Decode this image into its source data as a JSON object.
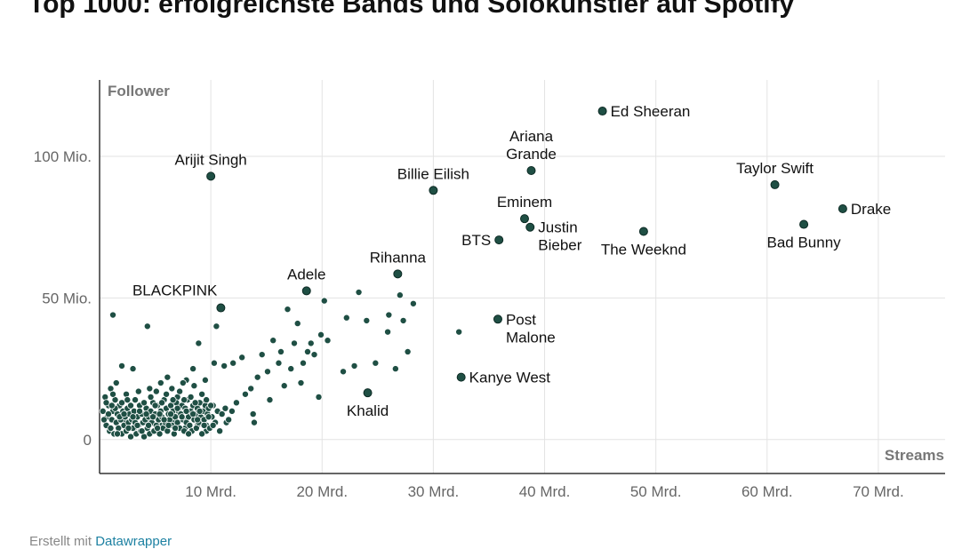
{
  "title": "Top 1000: erfolgreichste Bands und Solokünstler auf Spotify",
  "footer": {
    "prefix": "Erstellt mit ",
    "link": "Datawrapper"
  },
  "colors": {
    "dot": "#1f4f44",
    "dot_stroke": "#ffffff",
    "grid": "#e3e3e3",
    "axis": "#333333",
    "label": "#111111",
    "tick": "#666666"
  },
  "chart_data": {
    "type": "scatter",
    "xlabel": "Streams",
    "ylabel": "Follower",
    "xlim": [
      0,
      76
    ],
    "ylim": [
      -12,
      127
    ],
    "x_ticks": [
      {
        "value": 10,
        "label": "10 Mrd."
      },
      {
        "value": 20,
        "label": "20 Mrd."
      },
      {
        "value": 30,
        "label": "30 Mrd."
      },
      {
        "value": 40,
        "label": "40 Mrd."
      },
      {
        "value": 50,
        "label": "50 Mrd."
      },
      {
        "value": 60,
        "label": "60 Mrd."
      },
      {
        "value": 70,
        "label": "70 Mrd."
      }
    ],
    "y_ticks": [
      {
        "value": 0,
        "label": "0"
      },
      {
        "value": 50,
        "label": "50 Mio."
      },
      {
        "value": 100,
        "label": "100 Mio."
      }
    ],
    "grid": true,
    "labeled_points": [
      {
        "name": "Ed Sheeran",
        "x": 45.2,
        "y": 116,
        "anchor": "right"
      },
      {
        "name": "Ariana Grande",
        "x": 38.8,
        "y": 95,
        "anchor": "above"
      },
      {
        "name": "Arijit Singh",
        "x": 10.0,
        "y": 93,
        "anchor": "above"
      },
      {
        "name": "Billie Eilish",
        "x": 30.0,
        "y": 88,
        "anchor": "above"
      },
      {
        "name": "Taylor Swift",
        "x": 60.7,
        "y": 90,
        "anchor": "above"
      },
      {
        "name": "Drake",
        "x": 66.8,
        "y": 81.5,
        "anchor": "right"
      },
      {
        "name": "Eminem",
        "x": 38.2,
        "y": 78,
        "anchor": "above"
      },
      {
        "name": "Justin Bieber",
        "x": 38.7,
        "y": 75,
        "anchor": "right"
      },
      {
        "name": "Bad Bunny",
        "x": 63.3,
        "y": 76,
        "anchor": "below"
      },
      {
        "name": "The Weeknd",
        "x": 48.9,
        "y": 73.5,
        "anchor": "below"
      },
      {
        "name": "BTS",
        "x": 35.9,
        "y": 70.5,
        "anchor": "left"
      },
      {
        "name": "Rihanna",
        "x": 26.8,
        "y": 58.5,
        "anchor": "above"
      },
      {
        "name": "Adele",
        "x": 18.6,
        "y": 52.5,
        "anchor": "above"
      },
      {
        "name": "BLACKPINK",
        "x": 10.9,
        "y": 46.5,
        "anchor": "above-left"
      },
      {
        "name": "Post Malone",
        "x": 35.8,
        "y": 42.5,
        "anchor": "right"
      },
      {
        "name": "Kanye West",
        "x": 32.5,
        "y": 22,
        "anchor": "right"
      },
      {
        "name": "Khalid",
        "x": 24.1,
        "y": 16.5,
        "anchor": "below"
      }
    ],
    "points": [
      [
        1.2,
        44
      ],
      [
        2.0,
        26
      ],
      [
        3.0,
        25
      ],
      [
        4.3,
        40
      ],
      [
        5.1,
        17
      ],
      [
        6.1,
        22
      ],
      [
        7.0,
        15
      ],
      [
        7.8,
        21
      ],
      [
        8.4,
        25
      ],
      [
        8.9,
        34
      ],
      [
        9.5,
        13
      ],
      [
        10.3,
        27
      ],
      [
        10.5,
        40
      ],
      [
        11.2,
        26
      ],
      [
        12.0,
        27
      ],
      [
        12.3,
        13
      ],
      [
        12.8,
        29
      ],
      [
        13.1,
        16
      ],
      [
        13.6,
        18
      ],
      [
        13.8,
        9
      ],
      [
        13.9,
        6
      ],
      [
        14.2,
        22
      ],
      [
        14.6,
        30
      ],
      [
        15.1,
        24
      ],
      [
        15.3,
        14
      ],
      [
        15.6,
        35
      ],
      [
        16.1,
        27
      ],
      [
        16.3,
        31
      ],
      [
        16.6,
        19
      ],
      [
        16.9,
        46
      ],
      [
        17.2,
        25
      ],
      [
        17.5,
        34
      ],
      [
        17.8,
        41
      ],
      [
        18.1,
        20
      ],
      [
        18.3,
        27
      ],
      [
        18.7,
        31
      ],
      [
        19.0,
        34
      ],
      [
        19.3,
        30
      ],
      [
        19.7,
        15
      ],
      [
        19.9,
        37
      ],
      [
        20.2,
        49
      ],
      [
        20.5,
        35
      ],
      [
        21.9,
        24
      ],
      [
        22.2,
        43
      ],
      [
        22.9,
        26
      ],
      [
        23.3,
        52
      ],
      [
        24.0,
        42
      ],
      [
        24.8,
        27
      ],
      [
        25.9,
        38
      ],
      [
        26.0,
        44
      ],
      [
        26.6,
        25
      ],
      [
        27.0,
        51
      ],
      [
        27.3,
        42
      ],
      [
        27.7,
        31
      ],
      [
        28.2,
        48
      ],
      [
        32.3,
        38
      ],
      [
        2.2,
        6
      ],
      [
        3.1,
        4
      ],
      [
        4.4,
        7
      ],
      [
        5.6,
        5
      ],
      [
        6.6,
        6
      ],
      [
        7.7,
        4
      ],
      [
        8.8,
        5
      ],
      [
        9.6,
        3
      ],
      [
        11.4,
        6
      ],
      [
        0.3,
        10
      ],
      [
        0.5,
        15
      ],
      [
        0.6,
        5
      ],
      [
        0.7,
        8
      ],
      [
        0.8,
        12
      ],
      [
        0.9,
        3
      ],
      [
        1.0,
        18
      ],
      [
        1.1,
        7
      ],
      [
        1.2,
        10
      ],
      [
        1.3,
        2
      ],
      [
        1.4,
        14
      ],
      [
        1.5,
        6
      ],
      [
        1.6,
        9
      ],
      [
        1.7,
        4
      ],
      [
        1.8,
        12
      ],
      [
        1.9,
        7
      ],
      [
        2.0,
        2
      ],
      [
        2.1,
        10
      ],
      [
        2.2,
        5
      ],
      [
        2.3,
        8
      ],
      [
        2.4,
        3
      ],
      [
        2.5,
        11
      ],
      [
        2.6,
        6
      ],
      [
        2.7,
        9
      ],
      [
        2.8,
        1
      ],
      [
        2.9,
        7
      ],
      [
        3.0,
        4
      ],
      [
        3.1,
        10
      ],
      [
        3.2,
        6
      ],
      [
        3.3,
        2
      ],
      [
        3.4,
        8
      ],
      [
        3.5,
        5
      ],
      [
        3.6,
        12
      ],
      [
        3.7,
        3
      ],
      [
        3.8,
        9
      ],
      [
        3.9,
        6
      ],
      [
        4.0,
        1
      ],
      [
        4.1,
        7
      ],
      [
        4.2,
        11
      ],
      [
        4.3,
        4
      ],
      [
        4.4,
        8
      ],
      [
        4.5,
        2
      ],
      [
        4.6,
        10
      ],
      [
        4.7,
        6
      ],
      [
        4.8,
        13
      ],
      [
        4.9,
        3
      ],
      [
        5.0,
        9
      ],
      [
        5.1,
        5
      ],
      [
        5.2,
        12
      ],
      [
        5.3,
        7
      ],
      [
        5.4,
        2
      ],
      [
        5.5,
        10
      ],
      [
        5.6,
        8
      ],
      [
        5.7,
        4
      ],
      [
        5.8,
        14
      ],
      [
        5.9,
        6
      ],
      [
        6.0,
        11
      ],
      [
        6.1,
        3
      ],
      [
        6.2,
        9
      ],
      [
        6.3,
        7
      ],
      [
        6.4,
        12
      ],
      [
        6.5,
        5
      ],
      [
        6.6,
        10
      ],
      [
        6.7,
        2
      ],
      [
        6.8,
        8
      ],
      [
        6.9,
        13
      ],
      [
        7.0,
        6
      ],
      [
        7.1,
        10
      ],
      [
        7.2,
        4
      ],
      [
        7.3,
        9
      ],
      [
        7.4,
        12
      ],
      [
        7.5,
        7
      ],
      [
        7.6,
        3
      ],
      [
        7.7,
        11
      ],
      [
        7.8,
        6
      ],
      [
        7.9,
        14
      ],
      [
        8.0,
        8
      ],
      [
        8.1,
        5
      ],
      [
        8.2,
        10
      ],
      [
        8.3,
        3
      ],
      [
        8.4,
        12
      ],
      [
        8.5,
        7
      ],
      [
        8.6,
        9
      ],
      [
        8.7,
        4
      ],
      [
        8.8,
        11
      ],
      [
        8.9,
        6
      ],
      [
        9.0,
        13
      ],
      [
        9.1,
        8
      ],
      [
        9.2,
        2
      ],
      [
        9.3,
        10
      ],
      [
        9.4,
        7
      ],
      [
        9.5,
        12
      ],
      [
        9.6,
        5
      ],
      [
        9.7,
        9
      ],
      [
        9.8,
        11
      ],
      [
        9.9,
        4
      ],
      [
        10.1,
        8
      ],
      [
        10.2,
        12
      ],
      [
        10.4,
        6
      ],
      [
        10.6,
        10
      ],
      [
        10.8,
        3
      ],
      [
        11.0,
        9
      ],
      [
        11.3,
        11
      ],
      [
        11.6,
        7
      ],
      [
        11.9,
        10
      ],
      [
        0.4,
        7
      ],
      [
        0.6,
        13
      ],
      [
        0.8,
        9
      ],
      [
        1.0,
        4
      ],
      [
        1.2,
        16
      ],
      [
        1.4,
        11
      ],
      [
        1.6,
        2
      ],
      [
        1.8,
        8
      ],
      [
        2.0,
        13
      ],
      [
        2.2,
        9
      ],
      [
        2.4,
        16
      ],
      [
        2.6,
        4
      ],
      [
        2.8,
        12
      ],
      [
        3.0,
        8
      ],
      [
        3.2,
        14
      ],
      [
        3.4,
        5
      ],
      [
        3.6,
        10
      ],
      [
        3.8,
        3
      ],
      [
        4.0,
        13
      ],
      [
        4.2,
        9
      ],
      [
        4.4,
        5
      ],
      [
        4.6,
        15
      ],
      [
        4.8,
        8
      ],
      [
        5.0,
        12
      ],
      [
        5.2,
        4
      ],
      [
        5.4,
        9
      ],
      [
        5.6,
        13
      ],
      [
        5.8,
        7
      ],
      [
        6.0,
        16
      ],
      [
        6.2,
        5
      ],
      [
        6.4,
        9
      ],
      [
        6.6,
        14
      ],
      [
        6.8,
        4
      ],
      [
        7.0,
        11
      ],
      [
        7.2,
        17
      ],
      [
        7.4,
        8
      ],
      [
        7.6,
        14
      ],
      [
        7.8,
        10
      ],
      [
        8.0,
        2
      ],
      [
        8.2,
        15
      ],
      [
        8.4,
        9
      ],
      [
        8.6,
        13
      ],
      [
        8.8,
        7
      ],
      [
        9.0,
        10
      ],
      [
        9.2,
        16
      ],
      [
        9.4,
        5
      ],
      [
        9.6,
        14
      ],
      [
        9.8,
        8
      ],
      [
        10.0,
        12
      ],
      [
        10.2,
        5
      ],
      [
        1.5,
        20
      ],
      [
        2.5,
        14
      ],
      [
        3.5,
        17
      ],
      [
        4.5,
        18
      ],
      [
        5.5,
        20
      ],
      [
        6.5,
        18
      ],
      [
        7.5,
        20
      ],
      [
        8.5,
        19
      ],
      [
        9.5,
        21
      ],
      [
        1.1,
        12
      ]
    ]
  }
}
